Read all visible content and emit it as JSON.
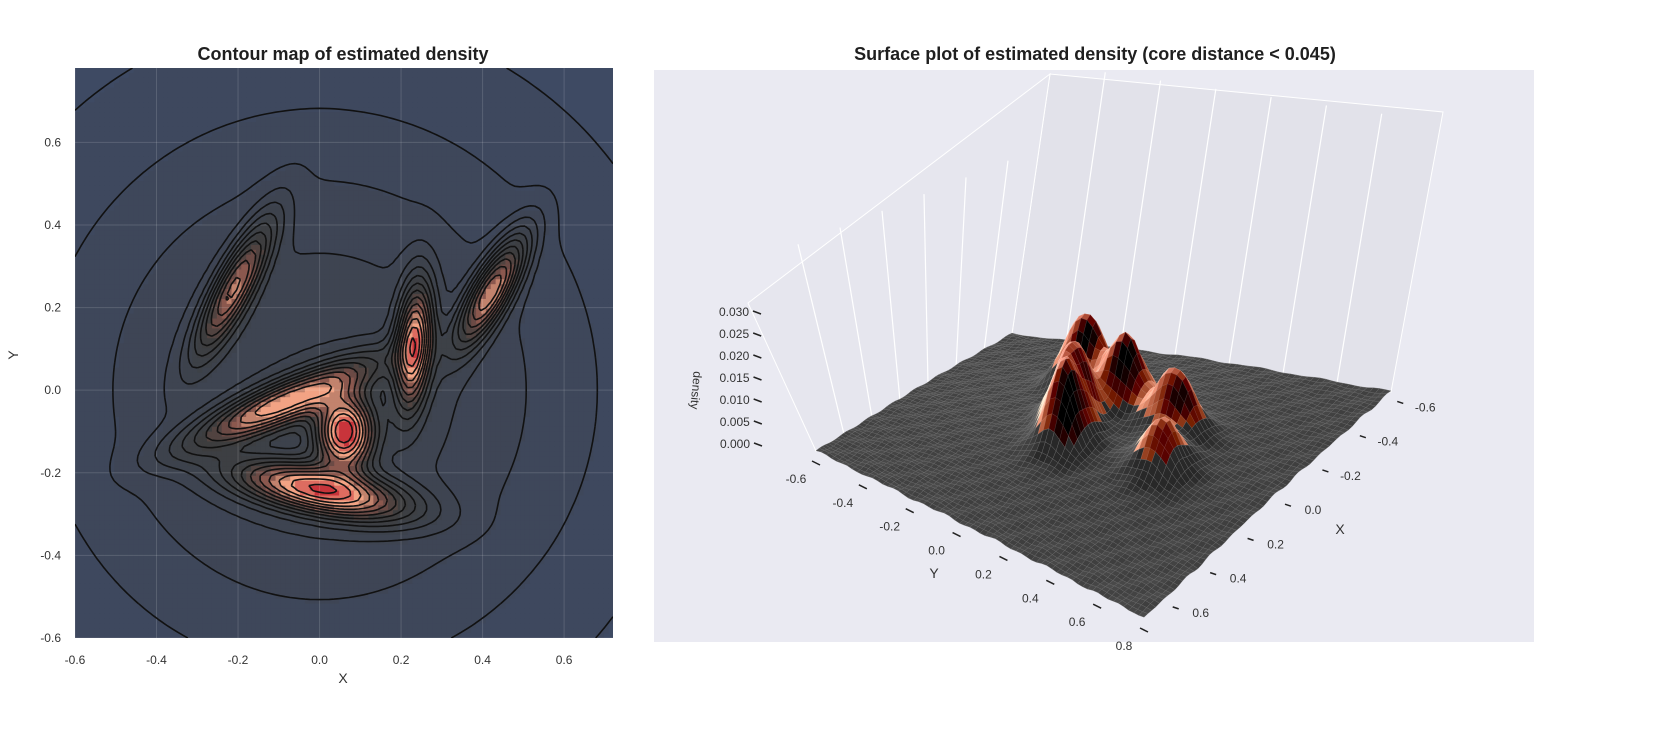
{
  "chart_data": [
    {
      "type": "contour",
      "title": "Contour map of estimated density",
      "xlabel": "X",
      "ylabel": "Y",
      "xlim": [
        -0.6,
        0.72
      ],
      "ylim": [
        -0.6,
        0.78
      ],
      "xticks": [
        "-0.6",
        "-0.4",
        "-0.2",
        "0.0",
        "0.2",
        "0.4",
        "0.6"
      ],
      "yticks": [
        "-0.6",
        "-0.4",
        "-0.2",
        "0.0",
        "0.2",
        "0.4",
        "0.6"
      ],
      "grid": true,
      "colors": {
        "background": "#3e4a63",
        "low": "#3d3d3d",
        "high": "#f4a988",
        "peak": "#c8343b",
        "line": "#111111"
      },
      "clusters": [
        {
          "x": -0.21,
          "y": 0.25,
          "sx": 0.12,
          "sy": 0.03,
          "angle": 62,
          "amp": 0.018
        },
        {
          "x": -0.09,
          "y": -0.03,
          "sx": 0.16,
          "sy": 0.033,
          "angle": 23,
          "amp": 0.021
        },
        {
          "x": 0.06,
          "y": -0.1,
          "sx": 0.045,
          "sy": 0.058,
          "angle": 0,
          "amp": 0.027
        },
        {
          "x": 0.0,
          "y": -0.24,
          "sx": 0.14,
          "sy": 0.038,
          "angle": -11,
          "amp": 0.025
        },
        {
          "x": 0.23,
          "y": 0.11,
          "sx": 0.1,
          "sy": 0.028,
          "angle": 85,
          "amp": 0.024
        },
        {
          "x": 0.42,
          "y": 0.24,
          "sx": 0.1,
          "sy": 0.03,
          "angle": 60,
          "amp": 0.021
        }
      ]
    },
    {
      "type": "surface3d",
      "title": "Surface plot of estimated density (core distance < 0.045)",
      "xlabel": "X",
      "ylabel": "Y",
      "zlabel": "density",
      "xticks": [
        "-0.6",
        "-0.4",
        "-0.2",
        "0.0",
        "0.2",
        "0.4",
        "0.6"
      ],
      "yticks": [
        "-0.6",
        "-0.4",
        "-0.2",
        "0.0",
        "0.2",
        "0.4",
        "0.6",
        "0.8"
      ],
      "zticks": [
        "0.000",
        "0.005",
        "0.010",
        "0.015",
        "0.020",
        "0.025",
        "0.030"
      ],
      "zlim": [
        0.0,
        0.03
      ],
      "grid": true,
      "colors": {
        "pane": "#eaeaf2",
        "surface": "#4a4a4a",
        "mesh": "#808080",
        "peak": "#f09a7a"
      }
    }
  ]
}
